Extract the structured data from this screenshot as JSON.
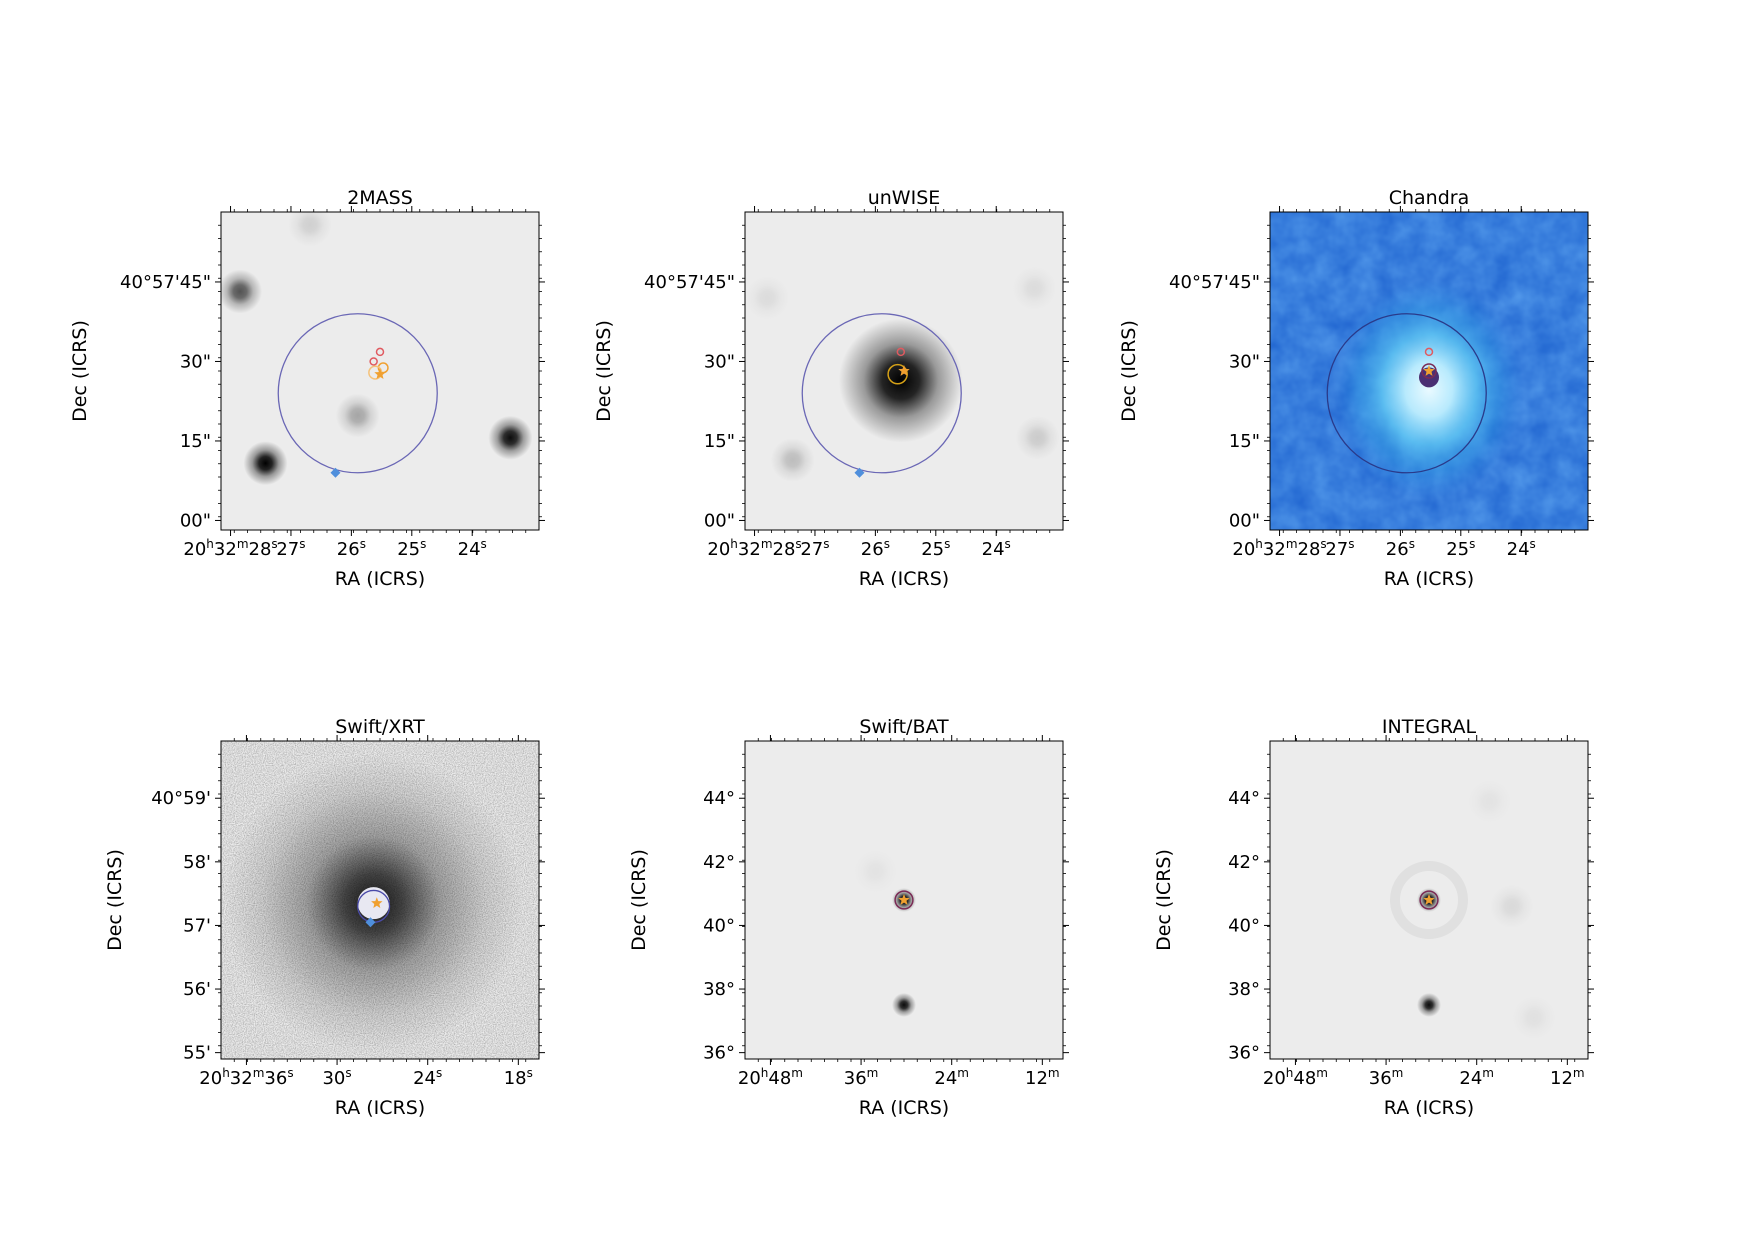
{
  "chart_data": [
    {
      "type": "heatmap",
      "title": "2MASS",
      "xlabel": "RA (ICRS)",
      "ylabel": "Dec (ICRS)",
      "colormap": "gray_r",
      "x_ticks": [
        "20h32m28s",
        "27s",
        "26s",
        "25s",
        "24s"
      ],
      "y_ticks": [
        "00\"",
        "15\"",
        "30\"",
        "40°57'45\""
      ],
      "sources": [
        {
          "kind": "blob",
          "u": 0.06,
          "v": 0.75,
          "strength": 0.65
        },
        {
          "kind": "blob",
          "u": 0.14,
          "v": 0.21,
          "strength": 1.0
        },
        {
          "kind": "blob",
          "u": 0.43,
          "v": 0.36,
          "strength": 0.3
        },
        {
          "kind": "blob",
          "u": 0.91,
          "v": 0.29,
          "strength": 0.95
        },
        {
          "kind": "blob",
          "u": 0.28,
          "v": 0.96,
          "strength": 0.12
        }
      ],
      "markers": {
        "error_circle": {
          "u": 0.43,
          "v": 0.43,
          "r": 0.25,
          "color": "#6a67b5"
        },
        "diamond": {
          "u": 0.36,
          "v": 0.18,
          "color": "#4f8fdc"
        },
        "star": {
          "u": 0.5,
          "v": 0.49,
          "color": "#f0a030"
        },
        "small_circles": [
          {
            "u": 0.5,
            "v": 0.56,
            "r": 0.011,
            "color": "#e05a60"
          },
          {
            "u": 0.48,
            "v": 0.53,
            "r": 0.011,
            "color": "#e05a60"
          },
          {
            "u": 0.51,
            "v": 0.51,
            "r": 0.015,
            "color": "#f0a030"
          },
          {
            "u": 0.485,
            "v": 0.495,
            "r": 0.02,
            "color": "#f5c27a"
          }
        ]
      }
    },
    {
      "type": "heatmap",
      "title": "unWISE",
      "xlabel": "RA (ICRS)",
      "ylabel": "Dec (ICRS)",
      "colormap": "gray_r",
      "x_ticks": [
        "20h32m28s",
        "27s",
        "26s",
        "25s",
        "24s"
      ],
      "y_ticks": [
        "00\"",
        "15\"",
        "30\"",
        "40°57'45\""
      ],
      "sources": [
        {
          "kind": "blob",
          "u": 0.49,
          "v": 0.47,
          "strength": 1.0,
          "size": "large"
        },
        {
          "kind": "blob",
          "u": 0.15,
          "v": 0.22,
          "strength": 0.2
        },
        {
          "kind": "blob",
          "u": 0.92,
          "v": 0.29,
          "strength": 0.14
        },
        {
          "kind": "blob",
          "u": 0.07,
          "v": 0.73,
          "strength": 0.07
        },
        {
          "kind": "blob",
          "u": 0.91,
          "v": 0.76,
          "strength": 0.07
        }
      ],
      "markers": {
        "error_circle": {
          "u": 0.43,
          "v": 0.43,
          "r": 0.25,
          "color": "#6a67b5"
        },
        "diamond": {
          "u": 0.36,
          "v": 0.18,
          "color": "#4f8fdc"
        },
        "star": {
          "u": 0.5,
          "v": 0.5,
          "color": "#f0a030"
        },
        "small_circles": [
          {
            "u": 0.49,
            "v": 0.56,
            "r": 0.011,
            "color": "#e05a60"
          },
          {
            "u": 0.48,
            "v": 0.49,
            "r": 0.03,
            "color": "#d4a017"
          }
        ]
      }
    },
    {
      "type": "heatmap",
      "title": "Chandra",
      "xlabel": "RA (ICRS)",
      "ylabel": "Dec (ICRS)",
      "colormap": "blue",
      "x_ticks": [
        "20h32m28s",
        "27s",
        "26s",
        "25s",
        "24s"
      ],
      "y_ticks": [
        "00\"",
        "15\"",
        "30\"",
        "40°57'45\""
      ],
      "sources": [
        {
          "kind": "nebula",
          "u": 0.5,
          "v": 0.48,
          "strength": 1.0
        }
      ],
      "markers": {
        "error_circle": {
          "u": 0.43,
          "v": 0.43,
          "r": 0.25,
          "color": "#2a3a8a"
        },
        "star": {
          "u": 0.5,
          "v": 0.5,
          "color": "#f0a030"
        },
        "small_circles": [
          {
            "u": 0.5,
            "v": 0.56,
            "r": 0.011,
            "color": "#e05a60"
          },
          {
            "u": 0.5,
            "v": 0.5,
            "r": 0.022,
            "color": "#7a2a55"
          }
        ]
      }
    },
    {
      "type": "heatmap",
      "title": "Swift/XRT",
      "xlabel": "RA (ICRS)",
      "ylabel": "Dec (ICRS)",
      "colormap": "gray_r",
      "x_ticks": [
        "20h32m36s",
        "30s",
        "24s",
        "18s"
      ],
      "y_ticks": [
        "55'",
        "56'",
        "57'",
        "58'",
        "40°59'"
      ],
      "sources": [
        {
          "kind": "noise_halo",
          "u": 0.48,
          "v": 0.49,
          "strength": 1.0
        }
      ],
      "markers": {
        "error_circle": {
          "u": 0.48,
          "v": 0.48,
          "r": 0.05,
          "color": "#4a4aa8"
        },
        "diamond": {
          "u": 0.47,
          "v": 0.43,
          "color": "#4f8fdc"
        },
        "star": {
          "u": 0.49,
          "v": 0.49,
          "color": "#f0a030"
        }
      }
    },
    {
      "type": "heatmap",
      "title": "Swift/BAT",
      "xlabel": "RA (ICRS)",
      "ylabel": "Dec (ICRS)",
      "colormap": "gray_r",
      "x_ticks": [
        "20h48m",
        "36m",
        "24m",
        "12m"
      ],
      "y_ticks": [
        "36°",
        "38°",
        "40°",
        "42°",
        "44°"
      ],
      "sources": [
        {
          "kind": "blob",
          "u": 0.5,
          "v": 0.5,
          "strength": 1.0,
          "size": "compact"
        },
        {
          "kind": "blob",
          "u": 0.5,
          "v": 0.17,
          "strength": 0.95,
          "size": "compact"
        },
        {
          "kind": "blob",
          "u": 0.41,
          "v": 0.59,
          "strength": 0.04
        }
      ],
      "markers": {
        "star": {
          "u": 0.5,
          "v": 0.5,
          "color": "#f0a030"
        },
        "small_circles": [
          {
            "u": 0.5,
            "v": 0.5,
            "r": 0.028,
            "color": "#7a2a55"
          }
        ]
      }
    },
    {
      "type": "heatmap",
      "title": "INTEGRAL",
      "xlabel": "RA (ICRS)",
      "ylabel": "Dec (ICRS)",
      "colormap": "gray_r",
      "x_ticks": [
        "20h48m",
        "36m",
        "24m",
        "12m"
      ],
      "y_ticks": [
        "36°",
        "38°",
        "40°",
        "42°",
        "44°"
      ],
      "sources": [
        {
          "kind": "blob",
          "u": 0.5,
          "v": 0.5,
          "strength": 1.0,
          "size": "compact"
        },
        {
          "kind": "blob",
          "u": 0.5,
          "v": 0.17,
          "strength": 0.95,
          "size": "compact"
        },
        {
          "kind": "blob",
          "u": 0.76,
          "v": 0.48,
          "strength": 0.08
        },
        {
          "kind": "blob",
          "u": 0.83,
          "v": 0.13,
          "strength": 0.05
        },
        {
          "kind": "blob",
          "u": 0.69,
          "v": 0.81,
          "strength": 0.04
        },
        {
          "kind": "ring",
          "u": 0.5,
          "v": 0.5,
          "strength": 0.05
        }
      ],
      "markers": {
        "star": {
          "u": 0.5,
          "v": 0.5,
          "color": "#f0a030"
        },
        "small_circles": [
          {
            "u": 0.5,
            "v": 0.5,
            "r": 0.028,
            "color": "#7a2a55"
          }
        ]
      }
    }
  ]
}
